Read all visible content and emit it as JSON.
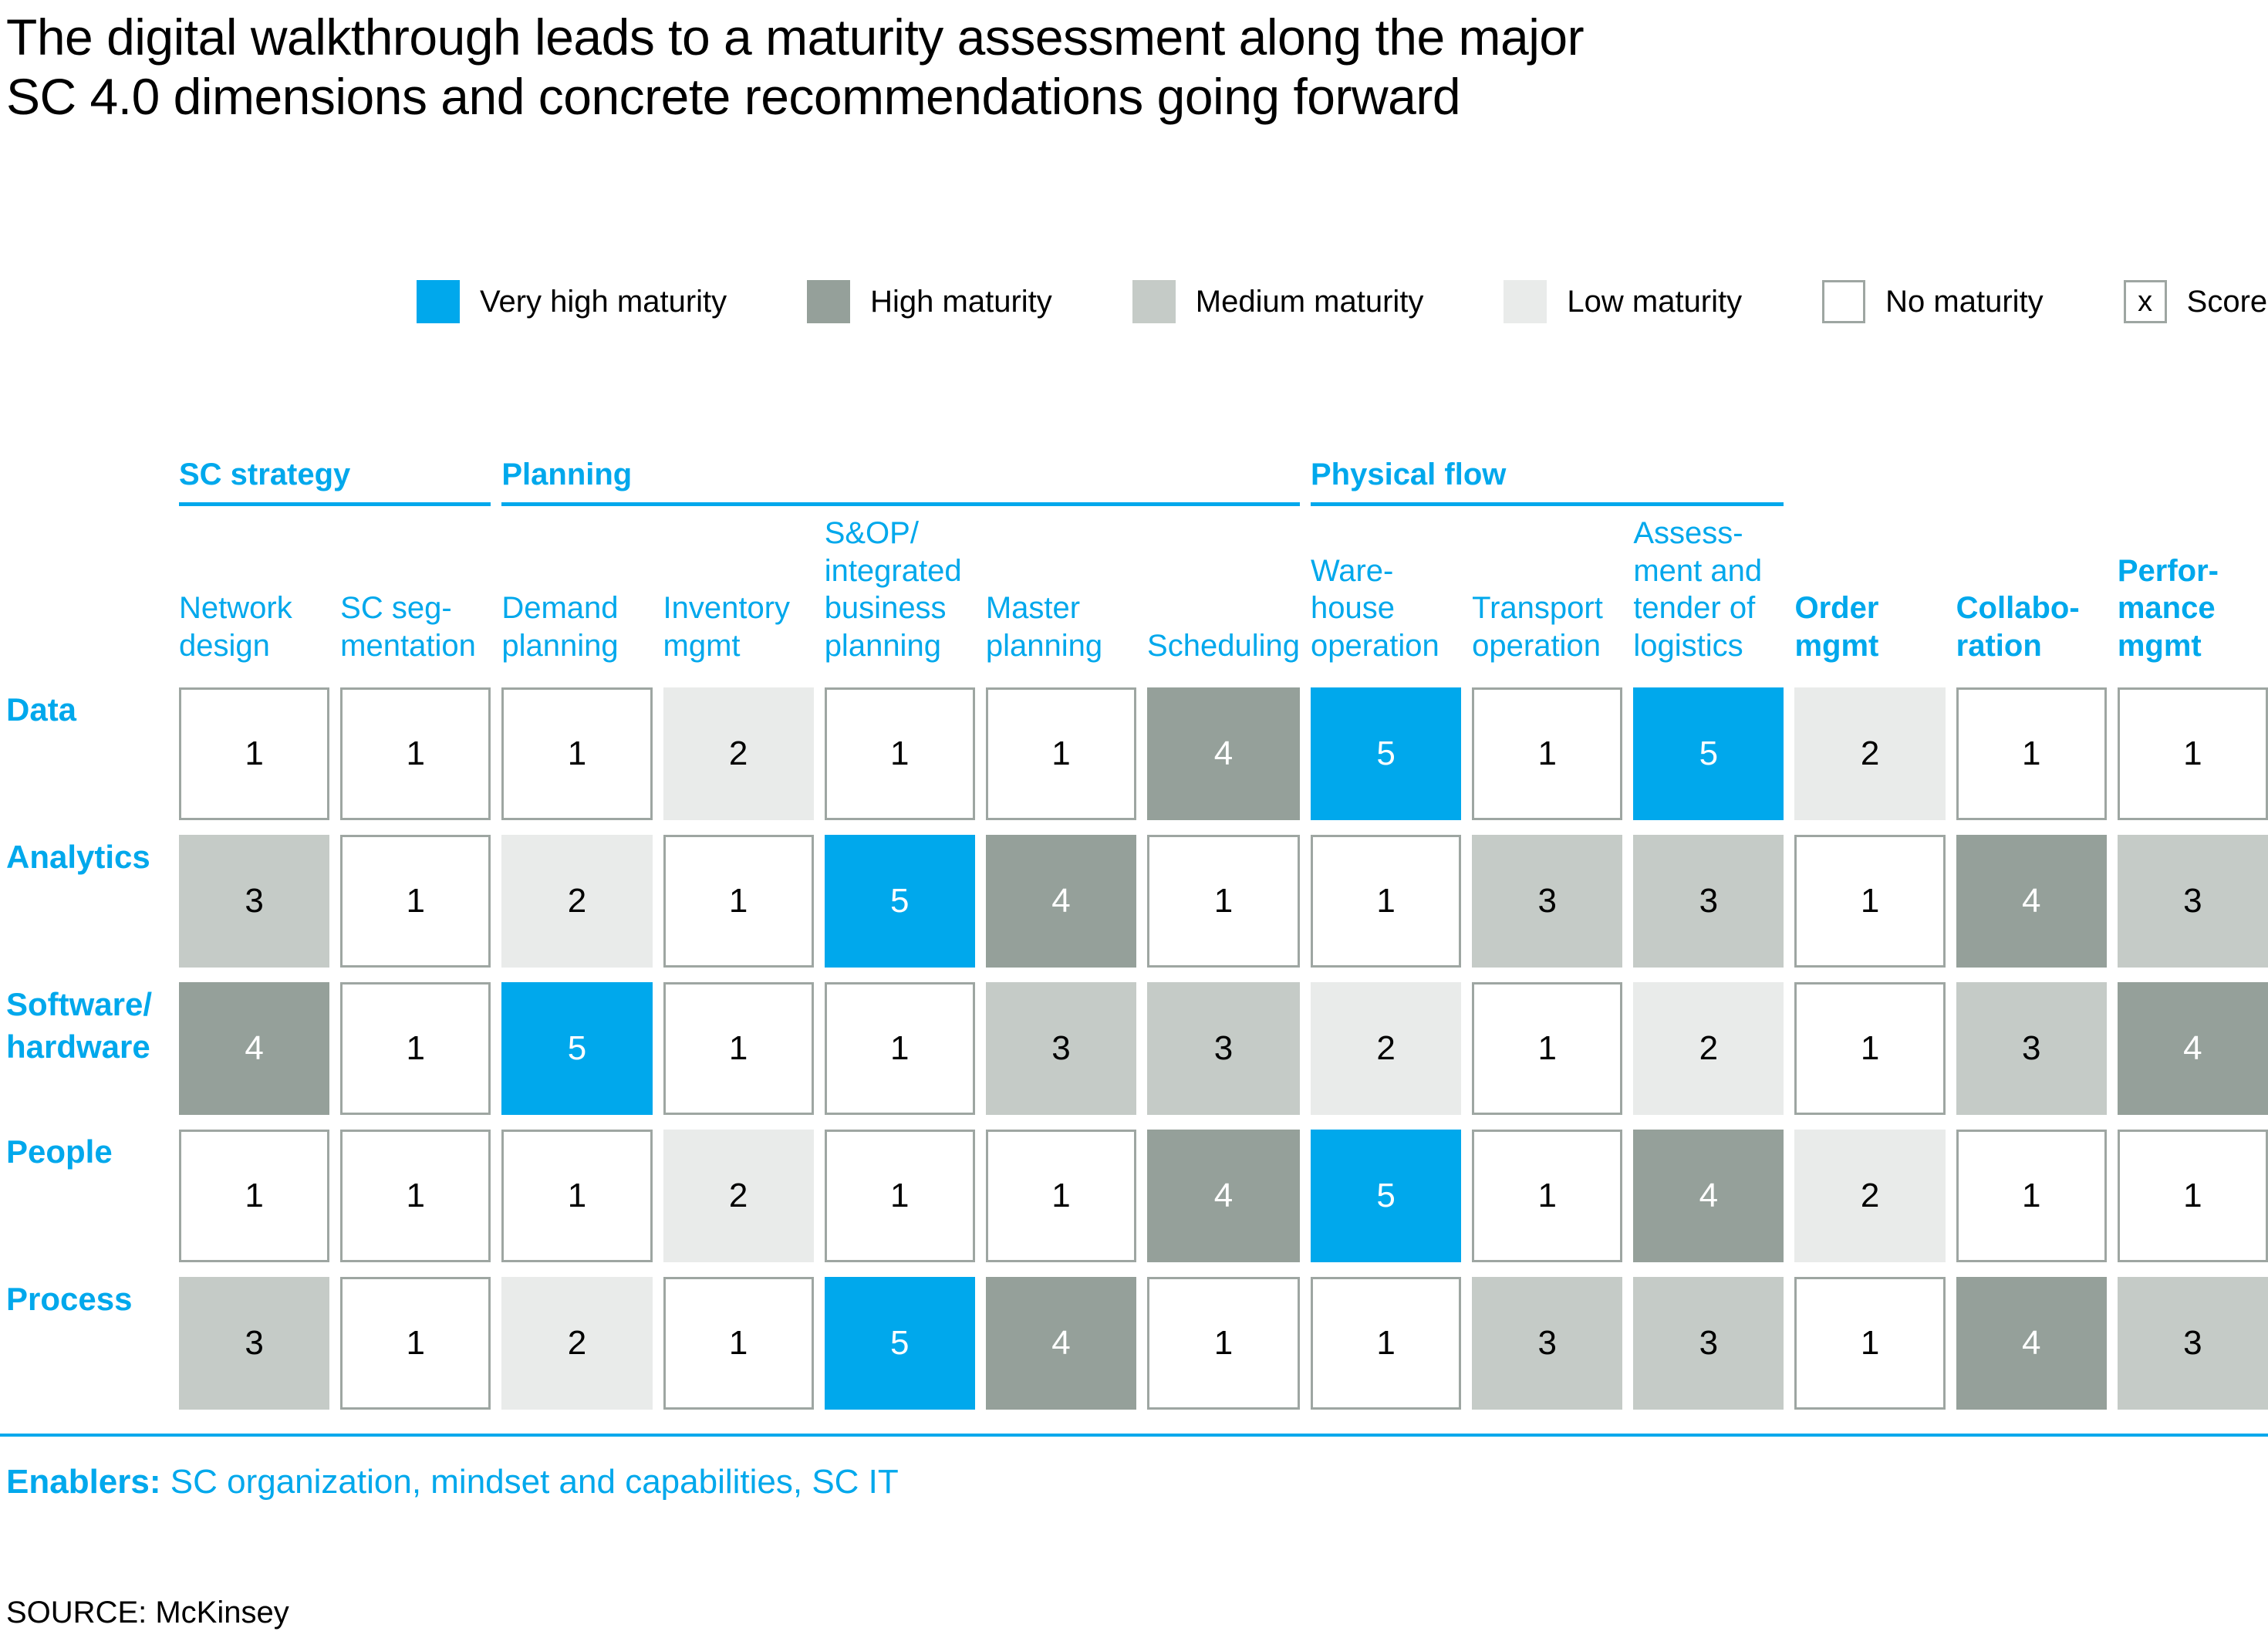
{
  "slide": {
    "title_line1": "The digital walkthrough leads to a maturity assessment along the major",
    "title_line2": "SC 4.0 dimensions and concrete recommendations going forward",
    "enablers_label": "Enablers:",
    "enablers_text": "SC organization, mindset and capabilities, SC IT",
    "source": "SOURCE: McKinsey"
  },
  "colors": {
    "accent": "#00A8EC",
    "very_high": "#00A8EC",
    "high": "#95A09A",
    "medium": "#C5CBC7",
    "low": "#E9EBEA",
    "cell_border": "#9EA6A2",
    "title": "#000000"
  },
  "legend": {
    "score_box_text": "x",
    "items": [
      {
        "label": "Very high maturity",
        "code": "v"
      },
      {
        "label": "High maturity",
        "code": "h"
      },
      {
        "label": "Medium maturity",
        "code": "m"
      },
      {
        "label": "Low maturity",
        "code": "l"
      },
      {
        "label": "No maturity",
        "code": "n"
      },
      {
        "label": "Score",
        "code": "score"
      }
    ]
  },
  "chart_data": {
    "type": "heatmap",
    "title": "The digital walkthrough leads to a maturity assessment along the major SC 4.0 dimensions and concrete recommendations going forward",
    "legend_position": "top",
    "score_scale": "1 (low) to 5 (very high)",
    "level_names": {
      "v": "Very high maturity",
      "h": "High maturity",
      "m": "Medium maturity",
      "l": "Low maturity",
      "n": "No maturity"
    },
    "column_groups": [
      {
        "label": "SC strategy",
        "start": 0,
        "end": 1
      },
      {
        "label": "Planning",
        "start": 2,
        "end": 6
      },
      {
        "label": "Physical flow",
        "start": 7,
        "end": 9
      }
    ],
    "columns": [
      {
        "label": "Network design",
        "lines": [
          "Network",
          "design"
        ],
        "bold": false
      },
      {
        "label": "SC segmentation",
        "lines": [
          "SC seg-",
          "mentation"
        ],
        "bold": false
      },
      {
        "label": "Demand planning",
        "lines": [
          "Demand",
          "planning"
        ],
        "bold": false
      },
      {
        "label": "Inventory mgmt",
        "lines": [
          "Inventory",
          "mgmt"
        ],
        "bold": false
      },
      {
        "label": "S&OP/integrated business planning",
        "lines": [
          "S&OP/",
          "integrated",
          "business",
          "planning"
        ],
        "bold": false
      },
      {
        "label": "Master planning",
        "lines": [
          "Master",
          "planning"
        ],
        "bold": false
      },
      {
        "label": "Scheduling",
        "lines": [
          "Scheduling"
        ],
        "bold": false
      },
      {
        "label": "Warehouse operation",
        "lines": [
          "Ware-",
          "house",
          "operation"
        ],
        "bold": false
      },
      {
        "label": "Transport operation",
        "lines": [
          "Transport",
          "operation"
        ],
        "bold": false
      },
      {
        "label": "Assessment and tender of logistics",
        "lines": [
          "Assess-",
          "ment and",
          "tender of",
          "logistics"
        ],
        "bold": false
      },
      {
        "label": "Order mgmt",
        "lines": [
          "Order",
          "mgmt"
        ],
        "bold": true
      },
      {
        "label": "Collaboration",
        "lines": [
          "Collabo-",
          "ration"
        ],
        "bold": true
      },
      {
        "label": "Performance mgmt",
        "lines": [
          "Perfor-",
          "mance",
          "mgmt"
        ],
        "bold": true
      }
    ],
    "rows": [
      {
        "label": "Data",
        "lines": [
          "Data"
        ]
      },
      {
        "label": "Analytics",
        "lines": [
          "Analytics"
        ]
      },
      {
        "label": "Software/hardware",
        "lines": [
          "Software/",
          "hardware"
        ]
      },
      {
        "label": "People",
        "lines": [
          "People"
        ]
      },
      {
        "label": "Process",
        "lines": [
          "Process"
        ]
      }
    ],
    "values": [
      [
        1,
        1,
        1,
        2,
        1,
        1,
        4,
        5,
        1,
        5,
        2,
        1,
        1
      ],
      [
        3,
        1,
        2,
        1,
        5,
        4,
        1,
        1,
        3,
        3,
        1,
        4,
        3
      ],
      [
        4,
        1,
        5,
        1,
        1,
        3,
        3,
        2,
        1,
        2,
        1,
        3,
        4
      ],
      [
        1,
        1,
        1,
        2,
        1,
        1,
        4,
        5,
        1,
        4,
        2,
        1,
        1
      ],
      [
        3,
        1,
        2,
        1,
        5,
        4,
        1,
        1,
        3,
        3,
        1,
        4,
        3
      ]
    ],
    "levels": [
      [
        "n",
        "n",
        "n",
        "l",
        "n",
        "n",
        "h",
        "v",
        "n",
        "v",
        "l",
        "n",
        "n"
      ],
      [
        "m",
        "n",
        "l",
        "n",
        "v",
        "h",
        "n",
        "n",
        "m",
        "m",
        "n",
        "h",
        "m"
      ],
      [
        "h",
        "n",
        "v",
        "n",
        "n",
        "m",
        "m",
        "l",
        "n",
        "l",
        "n",
        "m",
        "h"
      ],
      [
        "n",
        "n",
        "n",
        "l",
        "n",
        "n",
        "h",
        "v",
        "n",
        "h",
        "l",
        "n",
        "n"
      ],
      [
        "m",
        "n",
        "l",
        "n",
        "v",
        "h",
        "n",
        "n",
        "m",
        "m",
        "n",
        "h",
        "m"
      ]
    ]
  }
}
